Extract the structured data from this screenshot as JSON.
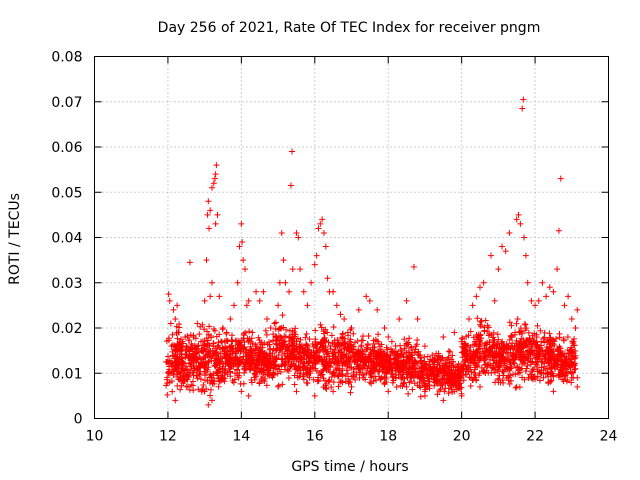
{
  "chart_data": {
    "type": "scatter",
    "title": "Day 256 of 2021, Rate Of TEC Index for receiver pngm",
    "xlabel": "GPS time / hours",
    "ylabel": "ROTI / TECUs",
    "xlim": [
      10,
      24
    ],
    "ylim": [
      0,
      0.08
    ],
    "grid": true,
    "marker": "+",
    "color": "#ff0000",
    "x_ticks": [
      "10",
      "12",
      "14",
      "16",
      "18",
      "20",
      "22",
      "24"
    ],
    "y_ticks": [
      "0",
      "0.01",
      "0.02",
      "0.03",
      "0.04",
      "0.05",
      "0.06",
      "0.07",
      "0.08"
    ],
    "series": [
      {
        "name": "ROTI",
        "points": [
          [
            12.02,
            0.0275
          ],
          [
            12.05,
            0.026
          ],
          [
            12.08,
            0.021
          ],
          [
            12.1,
            0.016
          ],
          [
            12.15,
            0.024
          ],
          [
            12.2,
            0.022
          ],
          [
            12.25,
            0.025
          ],
          [
            12.3,
            0.019
          ],
          [
            12.35,
            0.015
          ],
          [
            12.4,
            0.017
          ],
          [
            12.5,
            0.016
          ],
          [
            12.6,
            0.0345
          ],
          [
            12.7,
            0.018
          ],
          [
            12.8,
            0.021
          ],
          [
            12.9,
            0.017
          ],
          [
            13.0,
            0.026
          ],
          [
            13.05,
            0.035
          ],
          [
            13.08,
            0.045
          ],
          [
            13.1,
            0.048
          ],
          [
            13.12,
            0.042
          ],
          [
            13.15,
            0.046
          ],
          [
            13.2,
            0.051
          ],
          [
            13.25,
            0.052
          ],
          [
            13.3,
            0.054
          ],
          [
            13.32,
            0.056
          ],
          [
            13.28,
            0.053
          ],
          [
            13.35,
            0.045
          ],
          [
            13.3,
            0.043
          ],
          [
            13.15,
            0.027
          ],
          [
            13.2,
            0.03
          ],
          [
            13.4,
            0.027
          ],
          [
            13.5,
            0.02
          ],
          [
            13.6,
            0.019
          ],
          [
            13.7,
            0.022
          ],
          [
            13.8,
            0.025
          ],
          [
            13.9,
            0.03
          ],
          [
            13.95,
            0.038
          ],
          [
            14.0,
            0.043
          ],
          [
            14.02,
            0.039
          ],
          [
            14.05,
            0.035
          ],
          [
            14.1,
            0.033
          ],
          [
            14.15,
            0.025
          ],
          [
            14.2,
            0.026
          ],
          [
            14.3,
            0.019
          ],
          [
            14.4,
            0.028
          ],
          [
            14.5,
            0.026
          ],
          [
            14.6,
            0.028
          ],
          [
            14.7,
            0.022
          ],
          [
            14.8,
            0.02
          ],
          [
            14.9,
            0.021
          ],
          [
            15.0,
            0.025
          ],
          [
            15.05,
            0.03
          ],
          [
            15.1,
            0.041
          ],
          [
            15.15,
            0.035
          ],
          [
            15.2,
            0.03
          ],
          [
            15.3,
            0.028
          ],
          [
            15.35,
            0.0515
          ],
          [
            15.38,
            0.059
          ],
          [
            15.4,
            0.033
          ],
          [
            15.5,
            0.041
          ],
          [
            15.55,
            0.04
          ],
          [
            15.6,
            0.033
          ],
          [
            15.7,
            0.028
          ],
          [
            15.8,
            0.025
          ],
          [
            15.9,
            0.03
          ],
          [
            16.0,
            0.034
          ],
          [
            16.05,
            0.036
          ],
          [
            16.1,
            0.042
          ],
          [
            16.15,
            0.043
          ],
          [
            16.2,
            0.044
          ],
          [
            16.25,
            0.041
          ],
          [
            16.3,
            0.038
          ],
          [
            16.35,
            0.031
          ],
          [
            16.4,
            0.028
          ],
          [
            16.5,
            0.028
          ],
          [
            16.6,
            0.025
          ],
          [
            16.7,
            0.023
          ],
          [
            16.8,
            0.022
          ],
          [
            16.9,
            0.019
          ],
          [
            17.0,
            0.02
          ],
          [
            17.2,
            0.024
          ],
          [
            17.4,
            0.027
          ],
          [
            17.5,
            0.026
          ],
          [
            17.7,
            0.024
          ],
          [
            17.9,
            0.02
          ],
          [
            18.0,
            0.018
          ],
          [
            18.1,
            0.017
          ],
          [
            18.3,
            0.022
          ],
          [
            18.5,
            0.026
          ],
          [
            18.7,
            0.0335
          ],
          [
            18.8,
            0.022
          ],
          [
            19.0,
            0.016
          ],
          [
            19.2,
            0.014
          ],
          [
            19.5,
            0.018
          ],
          [
            19.8,
            0.019
          ],
          [
            20.0,
            0.017
          ],
          [
            20.2,
            0.022
          ],
          [
            20.3,
            0.025
          ],
          [
            20.4,
            0.027
          ],
          [
            20.5,
            0.029
          ],
          [
            20.6,
            0.03
          ],
          [
            20.8,
            0.036
          ],
          [
            20.9,
            0.026
          ],
          [
            21.0,
            0.033
          ],
          [
            21.1,
            0.038
          ],
          [
            21.2,
            0.037
          ],
          [
            21.3,
            0.041
          ],
          [
            21.5,
            0.044
          ],
          [
            21.55,
            0.045
          ],
          [
            21.6,
            0.043
          ],
          [
            21.65,
            0.0685
          ],
          [
            21.68,
            0.0705
          ],
          [
            21.7,
            0.04
          ],
          [
            21.75,
            0.036
          ],
          [
            21.8,
            0.03
          ],
          [
            21.9,
            0.026
          ],
          [
            22.0,
            0.025
          ],
          [
            22.1,
            0.026
          ],
          [
            22.2,
            0.03
          ],
          [
            22.3,
            0.027
          ],
          [
            22.4,
            0.029
          ],
          [
            22.5,
            0.028
          ],
          [
            22.6,
            0.033
          ],
          [
            22.65,
            0.0415
          ],
          [
            22.7,
            0.053
          ],
          [
            22.8,
            0.025
          ],
          [
            22.9,
            0.027
          ],
          [
            23.0,
            0.022
          ],
          [
            23.1,
            0.02
          ],
          [
            23.15,
            0.024
          ],
          [
            23.15,
            0.007
          ],
          [
            23.15,
            0.009
          ],
          [
            23.1,
            0.011
          ],
          [
            12.05,
            0.008
          ],
          [
            12.2,
            0.004
          ],
          [
            12.5,
            0.007
          ],
          [
            13.0,
            0.006
          ],
          [
            13.1,
            0.003
          ],
          [
            13.2,
            0.004
          ],
          [
            13.5,
            0.009
          ],
          [
            14.0,
            0.006
          ],
          [
            14.2,
            0.005
          ],
          [
            14.5,
            0.008
          ],
          [
            15.0,
            0.007
          ],
          [
            15.5,
            0.006
          ],
          [
            16.0,
            0.005
          ],
          [
            16.5,
            0.006
          ],
          [
            17.0,
            0.007
          ],
          [
            17.5,
            0.008
          ],
          [
            18.0,
            0.006
          ],
          [
            18.5,
            0.007
          ],
          [
            19.0,
            0.005
          ],
          [
            19.5,
            0.004
          ],
          [
            19.8,
            0.006
          ],
          [
            20.0,
            0.005
          ],
          [
            20.5,
            0.007
          ],
          [
            21.0,
            0.008
          ],
          [
            21.5,
            0.007
          ],
          [
            22.0,
            0.009
          ],
          [
            22.5,
            0.006
          ],
          [
            23.0,
            0.009
          ]
        ],
        "bands": [
          [
            11.95,
            12.35,
            0.004,
            0.022
          ],
          [
            12.35,
            12.85,
            0.005,
            0.02
          ],
          [
            12.85,
            13.5,
            0.003,
            0.022
          ],
          [
            13.5,
            13.9,
            0.006,
            0.02
          ],
          [
            13.9,
            14.3,
            0.005,
            0.022
          ],
          [
            14.3,
            14.9,
            0.006,
            0.02
          ],
          [
            14.9,
            15.5,
            0.006,
            0.024
          ],
          [
            15.5,
            16.0,
            0.006,
            0.02
          ],
          [
            16.0,
            16.5,
            0.004,
            0.022
          ],
          [
            16.5,
            17.0,
            0.005,
            0.022
          ],
          [
            17.0,
            17.9,
            0.006,
            0.02
          ],
          [
            17.9,
            18.3,
            0.006,
            0.018
          ],
          [
            18.3,
            18.9,
            0.004,
            0.02
          ],
          [
            18.9,
            19.5,
            0.004,
            0.016
          ],
          [
            19.5,
            20.0,
            0.004,
            0.016
          ],
          [
            20.0,
            20.4,
            0.006,
            0.02
          ],
          [
            20.4,
            20.9,
            0.006,
            0.024
          ],
          [
            20.9,
            21.3,
            0.006,
            0.02
          ],
          [
            21.3,
            21.8,
            0.005,
            0.024
          ],
          [
            21.8,
            22.2,
            0.006,
            0.022
          ],
          [
            22.2,
            22.6,
            0.006,
            0.022
          ],
          [
            22.6,
            23.1,
            0.006,
            0.02
          ]
        ]
      }
    ]
  }
}
